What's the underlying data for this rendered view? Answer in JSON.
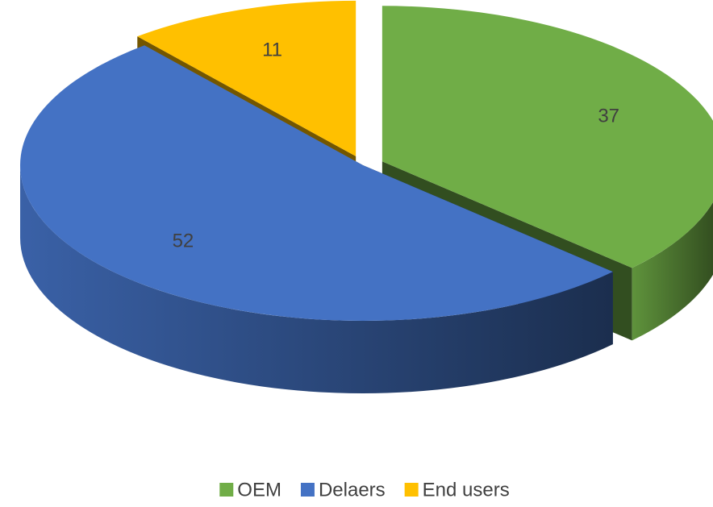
{
  "chart_data": {
    "type": "pie",
    "categories": [
      "OEM",
      "Delaers",
      "End users"
    ],
    "values": [
      37,
      52,
      11
    ],
    "colors": [
      "#70ad47",
      "#4472c4",
      "#ffc000"
    ],
    "explode": [
      1,
      0,
      1
    ],
    "legend": "bottom"
  }
}
